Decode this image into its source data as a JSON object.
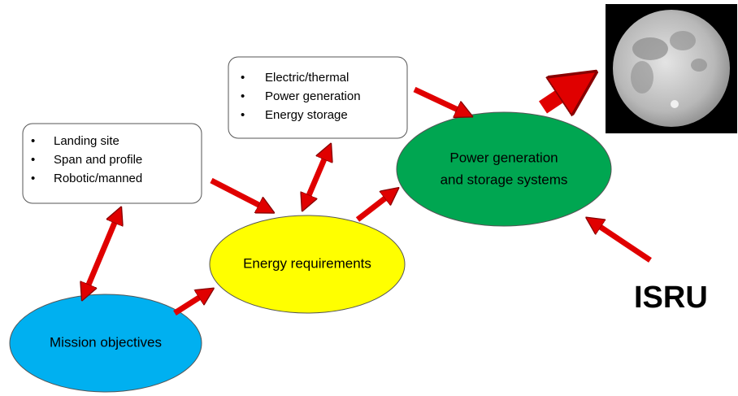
{
  "boxes": [
    {
      "items": [
        "Landing site",
        "Span and profile",
        "Robotic/manned"
      ]
    },
    {
      "items": [
        "Electric/thermal",
        "Power generation",
        "Energy storage"
      ]
    }
  ],
  "nodes": [
    {
      "label": "Mission objectives"
    },
    {
      "label": "Energy requirements"
    },
    {
      "lines": [
        "Power generation",
        "and storage systems"
      ]
    }
  ],
  "isru": "ISRU"
}
